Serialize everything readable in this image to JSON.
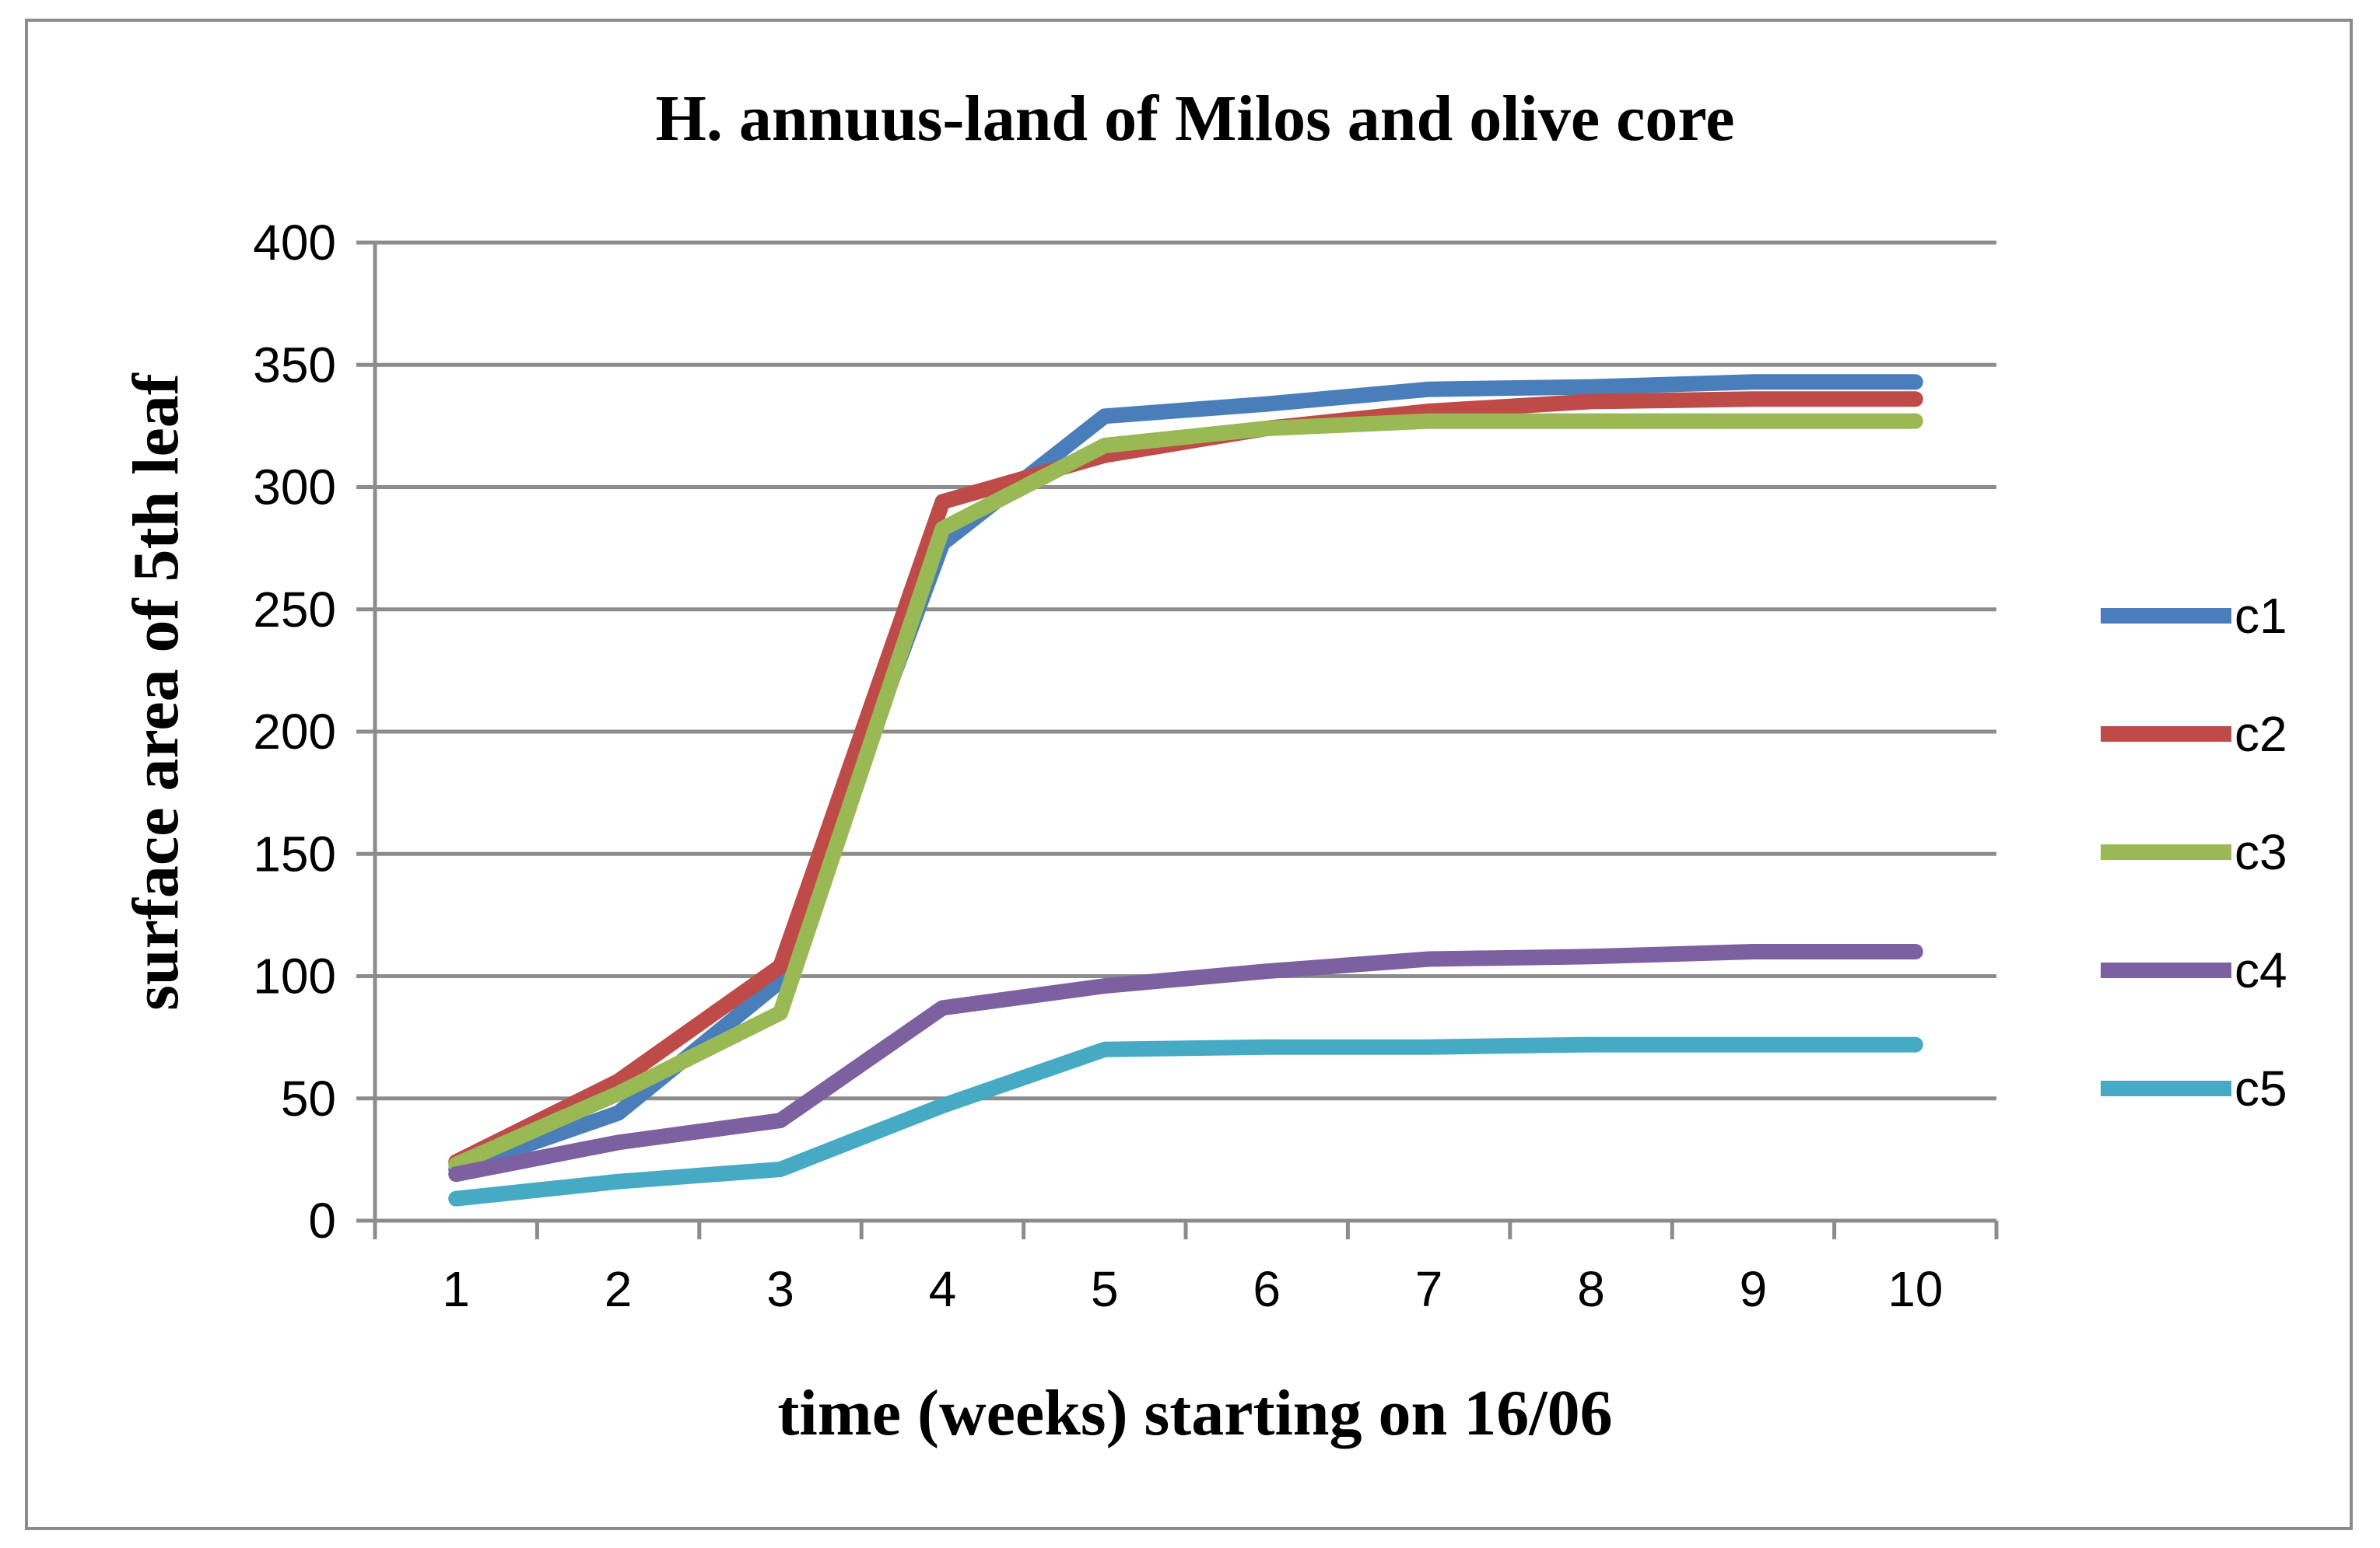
{
  "chart_data": {
    "type": "line",
    "title": "H. annuus-land of Milos and olive core",
    "xlabel": "time (weeks) starting on 16/06",
    "ylabel": "surface area of 5th leaf",
    "categories": [
      "1",
      "2",
      "3",
      "4",
      "5",
      "6",
      "7",
      "8",
      "9",
      "10"
    ],
    "ylim": [
      0,
      400
    ],
    "yticks": [
      0,
      50,
      100,
      150,
      200,
      250,
      300,
      350,
      400
    ],
    "grid": true,
    "legend_position": "right",
    "series": [
      {
        "name": "c1",
        "color": "#4a7ebb",
        "values": [
          21,
          44,
          98,
          277,
          329,
          334,
          340,
          341,
          343,
          343
        ]
      },
      {
        "name": "c2",
        "color": "#be4b48",
        "values": [
          24,
          57,
          104,
          294,
          313,
          324,
          331,
          335,
          336,
          336
        ]
      },
      {
        "name": "c3",
        "color": "#98b954",
        "values": [
          23,
          52,
          85,
          283,
          317,
          324,
          327,
          327,
          327,
          327
        ]
      },
      {
        "name": "c4",
        "color": "#7d60a0",
        "values": [
          19,
          32,
          41,
          87,
          96,
          102,
          107,
          108,
          110,
          110
        ]
      },
      {
        "name": "c5",
        "color": "#46aac5",
        "values": [
          9,
          16,
          21,
          47,
          70,
          71,
          71,
          72,
          72,
          72
        ]
      }
    ]
  }
}
